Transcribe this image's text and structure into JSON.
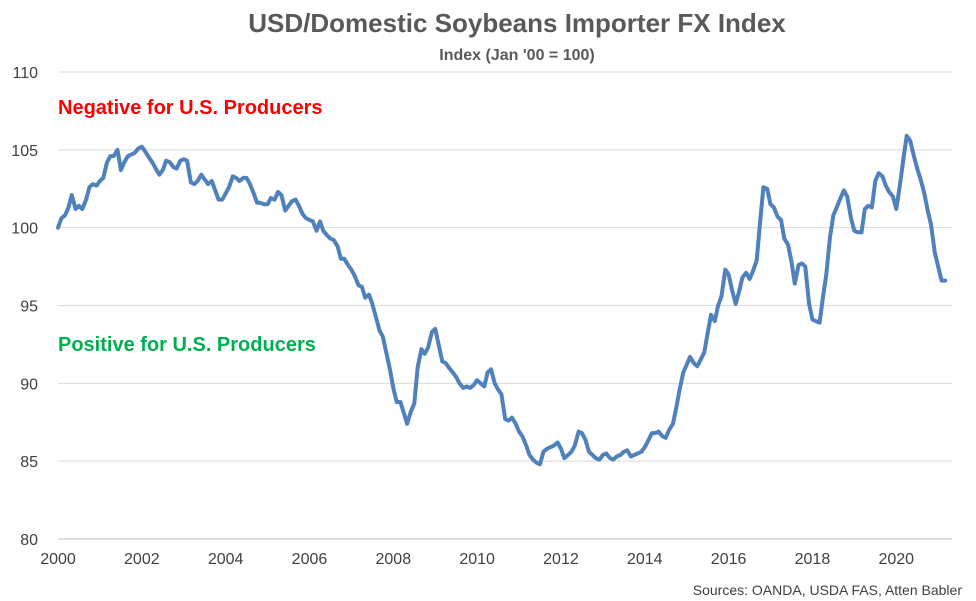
{
  "chart_data": {
    "type": "line",
    "title": "USD/Domestic Soybeans Importer FX Index",
    "subtitle": "Index (Jan '00 = 100)",
    "xlabel": "",
    "ylabel": "",
    "xlim": [
      2000,
      2021.33
    ],
    "ylim": [
      80,
      110
    ],
    "y_ticks": [
      80,
      85,
      90,
      95,
      100,
      105,
      110
    ],
    "x_ticks": [
      2000,
      2002,
      2004,
      2006,
      2008,
      2010,
      2012,
      2014,
      2016,
      2018,
      2020
    ],
    "grid": "horizontal",
    "legend": "none",
    "annotations": [
      {
        "text": "Negative for U.S. Producers",
        "color": "#ff0000"
      },
      {
        "text": "Positive for U.S. Producers",
        "color": "#00b050"
      }
    ],
    "source": "Sources: OANDA, USDA FAS, Atten Babler",
    "series": [
      {
        "color": "#4f81bd",
        "x": [
          2000.0,
          2000.08,
          2000.17,
          2000.25,
          2000.33,
          2000.42,
          2000.5,
          2000.58,
          2000.67,
          2000.75,
          2000.83,
          2000.92,
          2001.0,
          2001.08,
          2001.17,
          2001.25,
          2001.33,
          2001.42,
          2001.5,
          2001.58,
          2001.67,
          2001.75,
          2001.83,
          2001.92,
          2002.0,
          2002.08,
          2002.17,
          2002.25,
          2002.33,
          2002.42,
          2002.5,
          2002.58,
          2002.67,
          2002.75,
          2002.83,
          2002.92,
          2003.0,
          2003.08,
          2003.17,
          2003.25,
          2003.33,
          2003.42,
          2003.5,
          2003.58,
          2003.67,
          2003.75,
          2003.83,
          2003.92,
          2004.0,
          2004.08,
          2004.17,
          2004.25,
          2004.33,
          2004.42,
          2004.5,
          2004.58,
          2004.67,
          2004.75,
          2004.83,
          2004.92,
          2005.0,
          2005.08,
          2005.17,
          2005.25,
          2005.33,
          2005.42,
          2005.5,
          2005.58,
          2005.67,
          2005.75,
          2005.83,
          2005.92,
          2006.0,
          2006.08,
          2006.17,
          2006.25,
          2006.33,
          2006.42,
          2006.5,
          2006.58,
          2006.67,
          2006.75,
          2006.83,
          2006.92,
          2007.0,
          2007.08,
          2007.17,
          2007.25,
          2007.33,
          2007.42,
          2007.5,
          2007.58,
          2007.67,
          2007.75,
          2007.83,
          2007.92,
          2008.0,
          2008.08,
          2008.17,
          2008.25,
          2008.33,
          2008.42,
          2008.5,
          2008.58,
          2008.67,
          2008.75,
          2008.83,
          2008.92,
          2009.0,
          2009.08,
          2009.17,
          2009.25,
          2009.33,
          2009.42,
          2009.5,
          2009.58,
          2009.67,
          2009.75,
          2009.83,
          2009.92,
          2010.0,
          2010.08,
          2010.17,
          2010.25,
          2010.33,
          2010.42,
          2010.5,
          2010.58,
          2010.67,
          2010.75,
          2010.83,
          2010.92,
          2011.0,
          2011.08,
          2011.17,
          2011.25,
          2011.33,
          2011.42,
          2011.5,
          2011.58,
          2011.67,
          2011.75,
          2011.83,
          2011.92,
          2012.0,
          2012.08,
          2012.17,
          2012.25,
          2012.33,
          2012.42,
          2012.5,
          2012.58,
          2012.67,
          2012.75,
          2012.83,
          2012.92,
          2013.0,
          2013.08,
          2013.17,
          2013.25,
          2013.33,
          2013.42,
          2013.5,
          2013.58,
          2013.67,
          2013.75,
          2013.83,
          2013.92,
          2014.0,
          2014.08,
          2014.17,
          2014.25,
          2014.33,
          2014.42,
          2014.5,
          2014.58,
          2014.67,
          2014.75,
          2014.83,
          2014.92,
          2015.0,
          2015.08,
          2015.17,
          2015.25,
          2015.33,
          2015.42,
          2015.5,
          2015.58,
          2015.67,
          2015.75,
          2015.83,
          2015.92,
          2016.0,
          2016.08,
          2016.17,
          2016.25,
          2016.33,
          2016.42,
          2016.5,
          2016.58,
          2016.67,
          2016.75,
          2016.83,
          2016.92,
          2017.0,
          2017.08,
          2017.17,
          2017.25,
          2017.33,
          2017.42,
          2017.5,
          2017.58,
          2017.67,
          2017.75,
          2017.83,
          2017.92,
          2018.0,
          2018.08,
          2018.17,
          2018.25,
          2018.33,
          2018.42,
          2018.5,
          2018.58,
          2018.67,
          2018.75,
          2018.83,
          2018.92,
          2019.0,
          2019.08,
          2019.17,
          2019.25,
          2019.33,
          2019.42,
          2019.5,
          2019.58,
          2019.67,
          2019.75,
          2019.83,
          2019.92,
          2020.0,
          2020.08,
          2020.17,
          2020.25,
          2020.33,
          2020.42,
          2020.5,
          2020.58,
          2020.67,
          2020.75,
          2020.83,
          2020.92,
          2021.0,
          2021.08,
          2021.17
        ],
        "values": [
          100.0,
          100.6,
          100.8,
          101.3,
          102.1,
          101.2,
          101.4,
          101.2,
          101.8,
          102.6,
          102.8,
          102.7,
          103.0,
          103.2,
          104.2,
          104.6,
          104.6,
          105.0,
          103.7,
          104.2,
          104.6,
          104.7,
          104.8,
          105.1,
          105.2,
          104.9,
          104.5,
          104.2,
          103.8,
          103.4,
          103.7,
          104.3,
          104.2,
          103.9,
          103.8,
          104.3,
          104.4,
          104.3,
          102.9,
          102.8,
          103.0,
          103.4,
          103.1,
          102.8,
          103.0,
          102.4,
          101.8,
          101.8,
          102.2,
          102.6,
          103.3,
          103.2,
          103.0,
          103.2,
          103.2,
          102.8,
          102.2,
          101.6,
          101.6,
          101.5,
          101.5,
          101.9,
          101.8,
          102.3,
          102.1,
          101.1,
          101.4,
          101.7,
          101.8,
          101.4,
          100.9,
          100.6,
          100.5,
          100.4,
          99.8,
          100.4,
          99.8,
          99.5,
          99.3,
          99.2,
          98.8,
          98.0,
          98.0,
          97.6,
          97.3,
          96.9,
          96.3,
          96.2,
          95.5,
          95.7,
          95.1,
          94.3,
          93.4,
          93.0,
          92.0,
          90.9,
          89.7,
          88.8,
          88.8,
          88.1,
          87.4,
          88.2,
          88.7,
          91.0,
          92.2,
          91.9,
          92.3,
          93.3,
          93.5,
          92.5,
          91.4,
          91.3,
          91.0,
          90.7,
          90.4,
          90.0,
          89.7,
          89.8,
          89.7,
          89.9,
          90.2,
          90.0,
          89.8,
          90.7,
          90.9,
          90.0,
          89.6,
          89.3,
          87.7,
          87.6,
          87.8,
          87.4,
          86.9,
          86.6,
          86.0,
          85.4,
          85.1,
          84.9,
          84.8,
          85.6,
          85.8,
          85.9,
          86.0,
          86.2,
          85.8,
          85.2,
          85.4,
          85.6,
          86.0,
          86.9,
          86.8,
          86.4,
          85.6,
          85.4,
          85.2,
          85.1,
          85.4,
          85.5,
          85.2,
          85.1,
          85.3,
          85.4,
          85.6,
          85.7,
          85.3,
          85.4,
          85.5,
          85.6,
          85.9,
          86.3,
          86.8,
          86.8,
          86.9,
          86.6,
          86.5,
          87.0,
          87.4,
          88.4,
          89.6,
          90.7,
          91.2,
          91.7,
          91.3,
          91.1,
          91.5,
          92.0,
          93.2,
          94.4,
          94.0,
          95.0,
          95.6,
          97.3,
          97.0,
          96.0,
          95.1,
          95.9,
          96.8,
          97.1,
          96.7,
          97.2,
          97.9,
          100.3,
          102.6,
          102.5,
          101.5,
          101.3,
          100.7,
          100.5,
          99.3,
          98.9,
          97.8,
          96.4,
          97.6,
          97.7,
          97.5,
          95.1,
          94.1,
          94.0,
          93.9,
          95.5,
          97.0,
          99.4,
          100.8,
          101.3,
          101.9,
          102.4,
          102.0,
          100.6,
          99.8,
          99.7,
          99.7,
          101.2,
          101.4,
          101.3,
          103.0,
          103.5,
          103.3,
          102.7,
          102.3,
          102.0,
          101.2,
          102.6,
          104.4,
          105.9,
          105.6,
          104.6,
          103.8,
          103.1,
          102.2,
          101.1,
          100.2,
          98.4,
          97.5,
          96.6,
          96.6
        ]
      }
    ]
  }
}
